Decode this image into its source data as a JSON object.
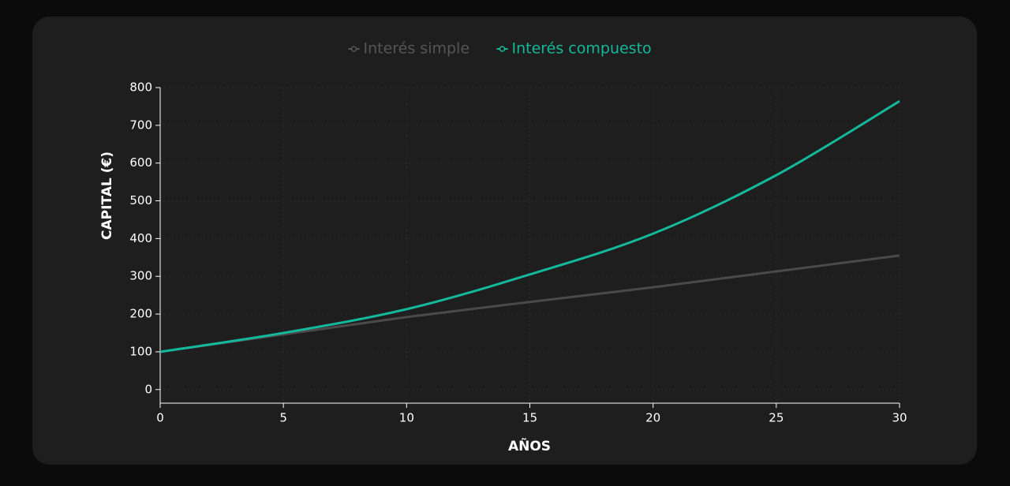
{
  "chart_data": {
    "type": "line",
    "x": [
      0,
      5,
      10,
      15,
      20,
      25,
      30
    ],
    "series": [
      {
        "name": "Interés simple",
        "color": "#4a4a4a",
        "values": [
          100,
          146,
          192,
          232,
          271,
          313,
          355
        ]
      },
      {
        "name": "Interés compuesto",
        "color": "#14b89a",
        "values": [
          100,
          150,
          213,
          305,
          413,
          568,
          764
        ]
      }
    ],
    "xlim": [
      0,
      30
    ],
    "xticks": [
      0,
      5,
      10,
      15,
      20,
      25,
      30
    ],
    "ylim": [
      -36,
      800
    ],
    "yticks": [
      0,
      100,
      200,
      300,
      400,
      500,
      600,
      700,
      800
    ],
    "xlabel": "AÑOS",
    "ylabel": "CAPITAL (€)",
    "grid": true
  }
}
